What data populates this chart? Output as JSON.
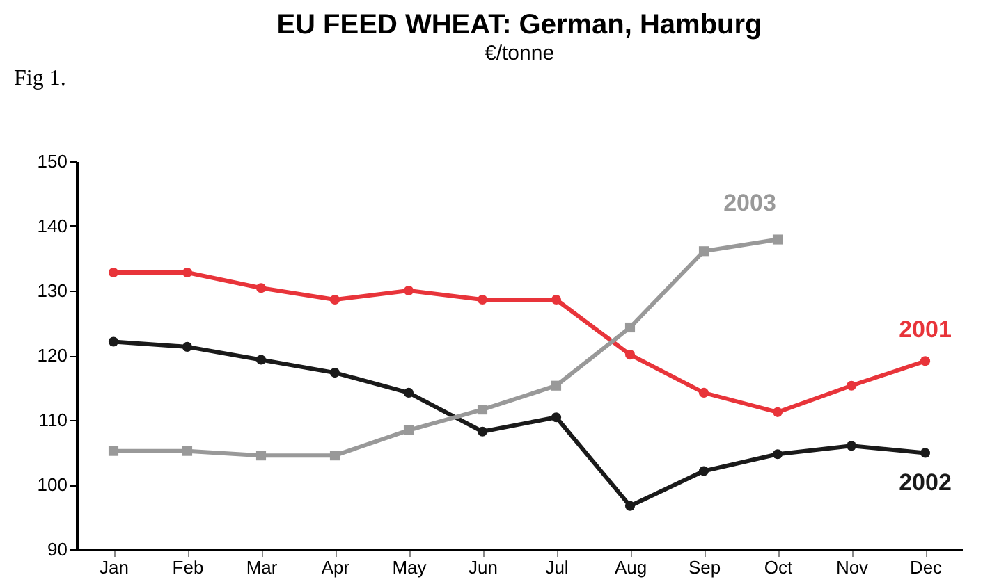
{
  "chart_data": {
    "type": "line",
    "title": "EU FEED WHEAT: German, Hamburg",
    "subtitle": "€/tonne",
    "annotations": [
      "Fig 1."
    ],
    "categories": [
      "Jan",
      "Feb",
      "Mar",
      "Apr",
      "May",
      "Jun",
      "Jul",
      "Aug",
      "Sep",
      "Oct",
      "Nov",
      "Dec"
    ],
    "series": [
      {
        "name": "2001",
        "color": "#e8343a",
        "marker": "circle",
        "values": [
          132.8,
          132.8,
          130.4,
          128.6,
          130,
          128.6,
          128.6,
          120.1,
          114.2,
          111.2,
          115.3,
          119.1
        ]
      },
      {
        "name": "2002",
        "color": "#1a1a1a",
        "marker": "circle",
        "values": [
          122.1,
          121.3,
          119.3,
          117.3,
          114.2,
          108.2,
          110.4,
          96.7,
          102.1,
          104.7,
          106,
          104.9
        ]
      },
      {
        "name": "2003",
        "color": "#999999",
        "marker": "square",
        "values": [
          105.2,
          105.2,
          104.5,
          104.5,
          108.4,
          111.6,
          115.3,
          124.3,
          136.1,
          137.9,
          null,
          null
        ]
      }
    ],
    "ylim": [
      90,
      150
    ],
    "yticks": [
      90,
      100,
      110,
      120,
      130,
      140,
      150
    ],
    "grid": false,
    "line_style": "solid"
  }
}
